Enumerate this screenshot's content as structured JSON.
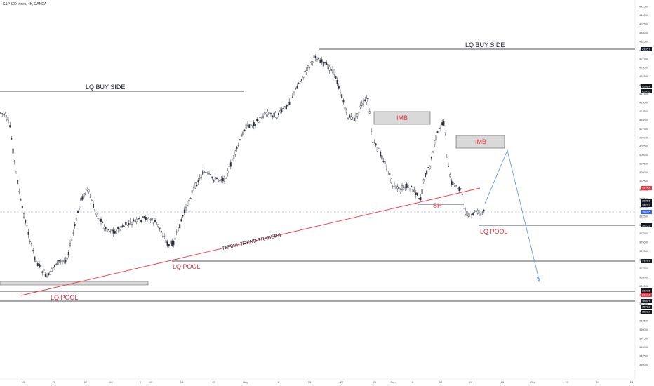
{
  "chart_title": "S&P 500 Index, 4h, OANDA",
  "y_axis": {
    "ticks": [
      "4425.0",
      "4400.0",
      "4375.0",
      "4350.0",
      "4325.0",
      "4300.0",
      "4275.0",
      "4250.0",
      "4225.0",
      "4200.0",
      "4175.0",
      "4150.0",
      "4125.0",
      "4100.0",
      "4075.0",
      "4050.0",
      "4025.0",
      "4000.0",
      "3975.0",
      "3950.0",
      "3925.0",
      "3900.0",
      "3875.0",
      "3850.0",
      "3825.0",
      "3800.0",
      "3775.0",
      "3750.0",
      "3725.0",
      "3700.0",
      "3675.0",
      "3650.0",
      "3625.0",
      "3600.0",
      "3575.0",
      "3550.0",
      "3525.0",
      "3500.0",
      "3475.0",
      "3450.0",
      "3425.0",
      "3400.0"
    ]
  },
  "x_axis": {
    "ticks": [
      "13",
      "20",
      "27",
      "Jul",
      "6",
      "11",
      "18",
      "25",
      "Aug",
      "8",
      "15",
      "22",
      "29",
      "Sep",
      "6",
      "12",
      "19",
      "26",
      "Oct",
      "10",
      "17",
      "24"
    ]
  },
  "price_tags": [
    {
      "label": "4326.7",
      "color": "#131722"
    },
    {
      "label": "4208.4",
      "color": "#131722"
    },
    {
      "label": "4200.6",
      "color": "#131722"
    },
    {
      "label": "3915.6",
      "color": "#f23645"
    },
    {
      "label": "3885.6",
      "color": "#131722"
    },
    {
      "label": "3882.3",
      "color": "#131722"
    },
    {
      "label": "3862.5",
      "color": "#2962ff"
    },
    {
      "label": "3825.3",
      "color": "#131722"
    },
    {
      "label": "3722.7",
      "color": "#131722"
    },
    {
      "label": "3629.5",
      "color": "#131722"
    },
    {
      "label": "3619.1",
      "color": "#f23645"
    },
    {
      "label": "3609.7",
      "color": "#131722"
    },
    {
      "label": "3590.2",
      "color": "#131722"
    },
    {
      "label": "3580.2",
      "color": "#131722"
    }
  ],
  "annotations": {
    "lq_buy_side_top": "LQ BUY SIDE",
    "lq_buy_side_left": "LQ BUY SIDE",
    "imb_1": "IMB",
    "imb_2": "IMB",
    "sh": "SH",
    "retail": "RETAIL TREND TRADERS",
    "lq_pool_left": "LQ POOL",
    "lq_pool_mid": "LQ POOL",
    "lq_pool_right": "LQ POOL"
  },
  "colors": {
    "candle": "#2a2e39",
    "trendline": "#f23645",
    "arrow": "#5b8fd6",
    "imb_fill": "#d9d9d9",
    "pool_text": "#e0303e"
  },
  "chart_data": {
    "type": "candlestick",
    "title": "S&P 500 Index, 4h, OANDA",
    "close_path": [
      [
        "13",
        3900
      ],
      [
        "20",
        3660
      ],
      [
        "27",
        3900
      ],
      [
        "Jul",
        3820
      ],
      [
        "11",
        3850
      ],
      [
        "18",
        3770
      ],
      [
        "25",
        3980
      ],
      [
        "Aug",
        4120
      ],
      [
        "8",
        4150
      ],
      [
        "15",
        4310
      ],
      [
        "22",
        4120
      ],
      [
        "29",
        4050
      ],
      [
        "Sep",
        3950
      ],
      [
        "6",
        3880
      ],
      [
        "12",
        4080
      ],
      [
        "19",
        3870
      ]
    ],
    "ylim": [
      3400,
      4440
    ]
  }
}
